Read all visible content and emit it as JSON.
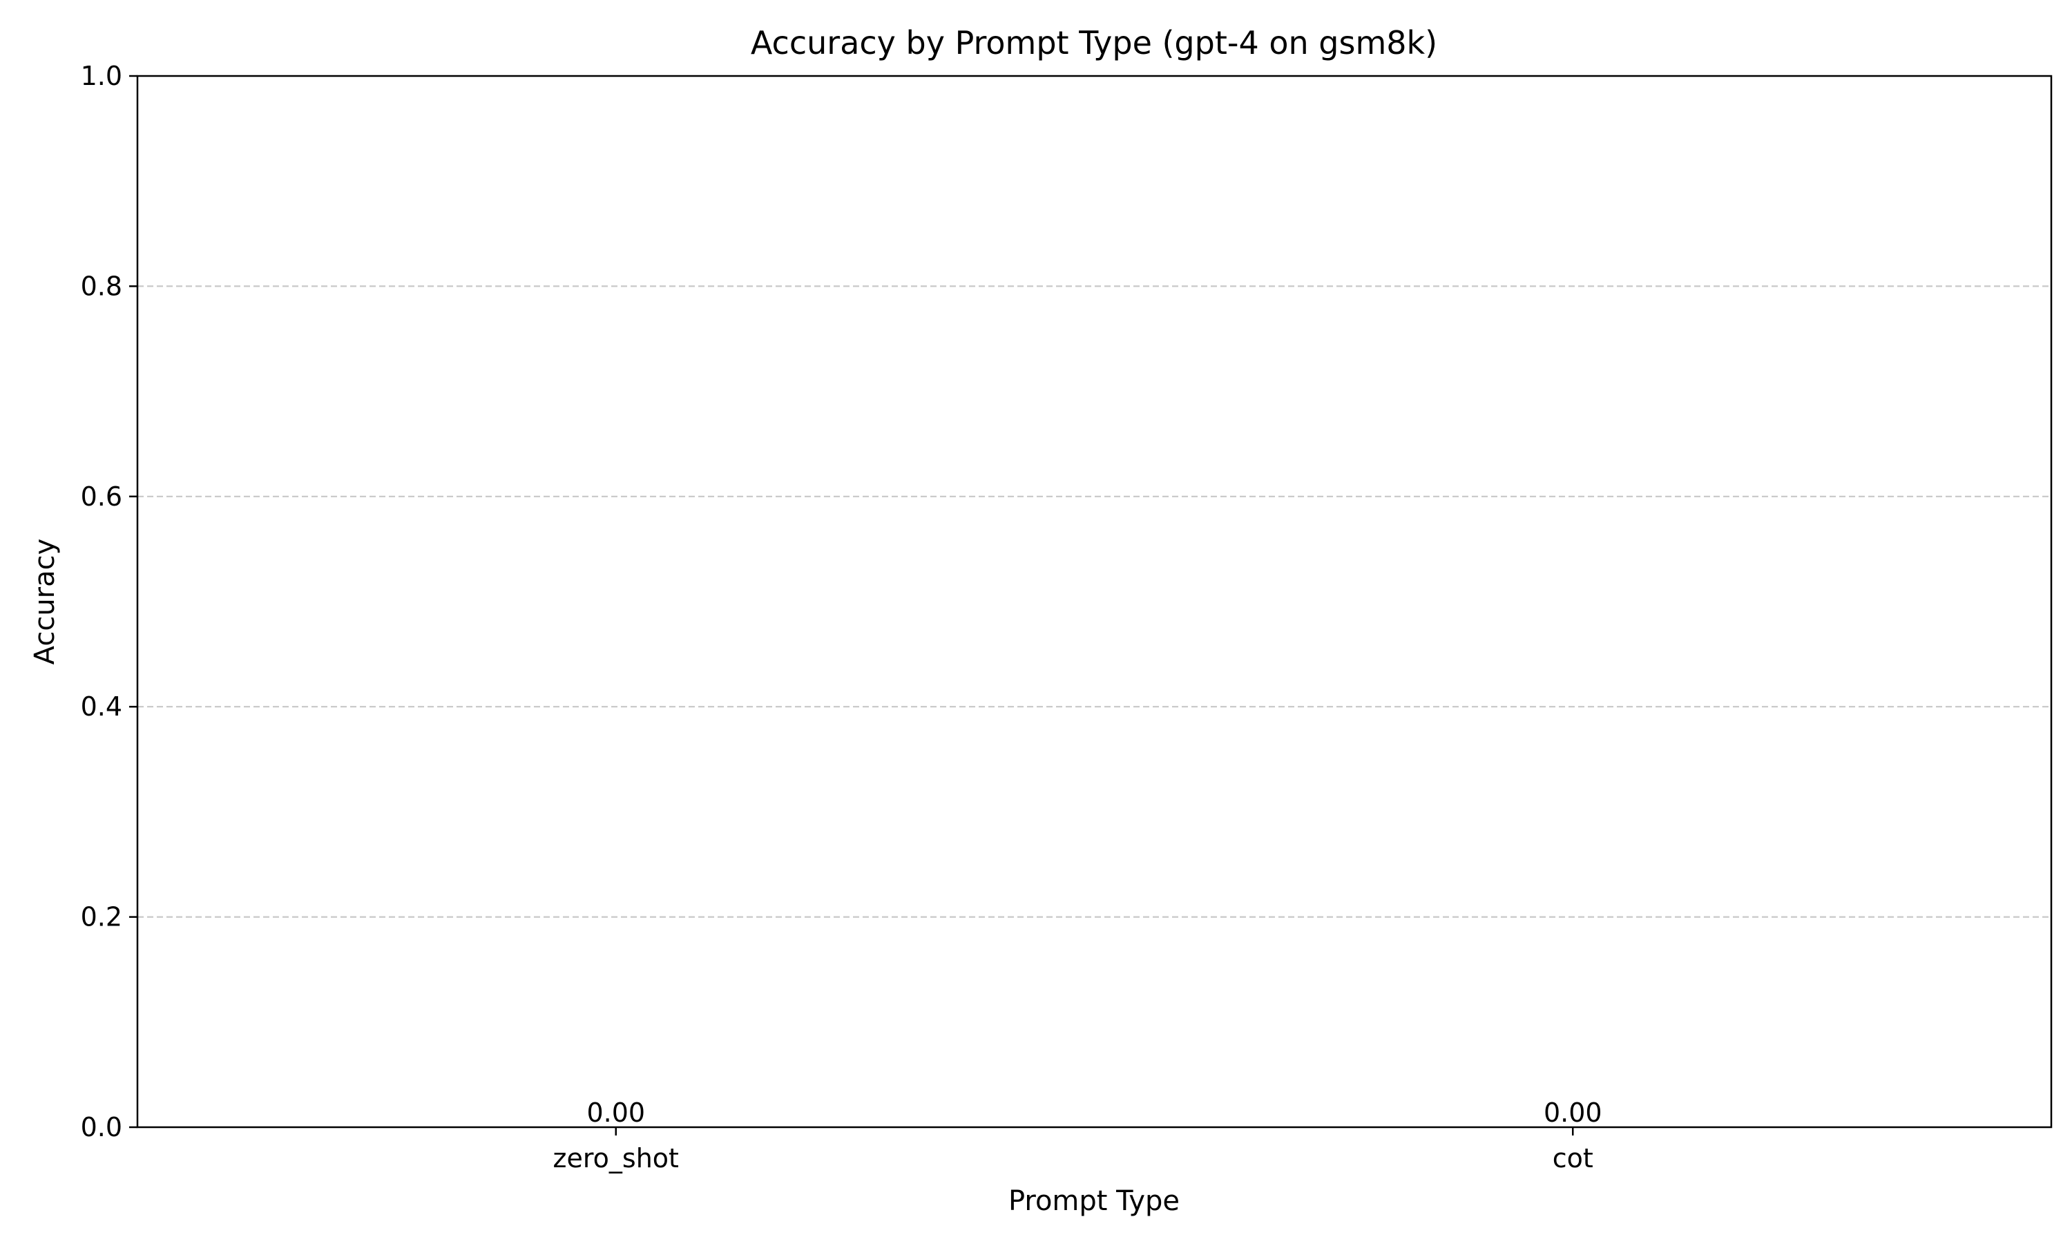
{
  "chart_data": {
    "type": "bar",
    "title": "Accuracy by Prompt Type (gpt-4 on gsm8k)",
    "xlabel": "Prompt Type",
    "ylabel": "Accuracy",
    "categories": [
      "zero_shot",
      "cot"
    ],
    "values": [
      0.0,
      0.0
    ],
    "data_labels": [
      "0.00",
      "0.00"
    ],
    "ylim": [
      0,
      1.0
    ],
    "yticks": [
      0.0,
      0.2,
      0.4,
      0.6,
      0.8,
      1.0
    ],
    "ytick_labels": [
      "0.0",
      "0.2",
      "0.4",
      "0.6",
      "0.8",
      "1.0"
    ],
    "grid": {
      "axis": "y",
      "style": "dashed",
      "color": "#c8c8c8"
    },
    "legend": "none",
    "colors": {
      "bar": "#1f77b4",
      "axis": "#000000",
      "text": "#000000"
    }
  }
}
